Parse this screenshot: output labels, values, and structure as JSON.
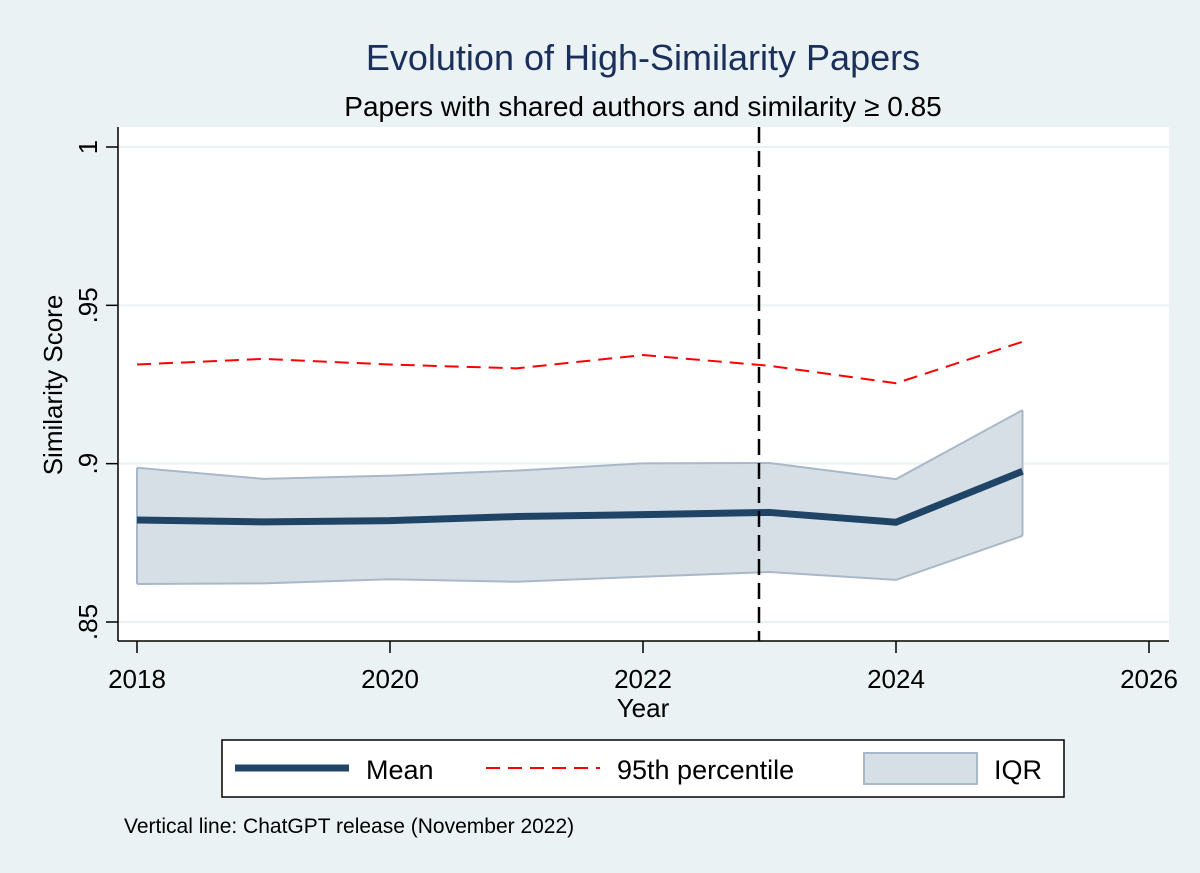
{
  "chart_data": {
    "type": "line",
    "title": "Evolution of High-Similarity Papers",
    "subtitle": "Papers with shared authors and similarity ≥ 0.85",
    "xlabel": "Year",
    "ylabel": "Similarity Score",
    "xlim": [
      2018,
      2026
    ],
    "ylim": [
      0.85,
      1.0
    ],
    "x_ticks": [
      {
        "value": 2018,
        "label": "2018"
      },
      {
        "value": 2020,
        "label": "2020"
      },
      {
        "value": 2022,
        "label": "2022"
      },
      {
        "value": 2024,
        "label": "2024"
      },
      {
        "value": 2026,
        "label": "2026"
      }
    ],
    "y_ticks": [
      {
        "value": 0.85,
        "label": ".85"
      },
      {
        "value": 0.9,
        "label": ".9"
      },
      {
        "value": 0.95,
        "label": ".95"
      },
      {
        "value": 1.0,
        "label": "1"
      }
    ],
    "grid": "horizontal",
    "x": [
      2018,
      2019,
      2020,
      2021,
      2022,
      2023,
      2024,
      2025
    ],
    "series": [
      {
        "name": "Mean",
        "style": "solid-thick",
        "color": "#1f4466",
        "values": [
          0.8822,
          0.8816,
          0.882,
          0.8833,
          0.8839,
          0.8846,
          0.8815,
          0.8976
        ]
      },
      {
        "name": "95th percentile",
        "style": "dashed",
        "color": "#ff0000",
        "values": [
          0.9313,
          0.9331,
          0.9313,
          0.9301,
          0.9343,
          0.9309,
          0.9254,
          0.9385
        ]
      }
    ],
    "band": {
      "name": "IQR",
      "fill": "#d7dfe6",
      "stroke": "#a9b8c8",
      "lower": [
        0.862,
        0.8622,
        0.8635,
        0.8627,
        0.8643,
        0.8658,
        0.8633,
        0.8772
      ],
      "upper": [
        0.8987,
        0.8952,
        0.8962,
        0.8978,
        0.9001,
        0.9002,
        0.8951,
        0.9169
      ]
    },
    "vline": {
      "x": 2022.917,
      "style": "dashed",
      "color": "#000000"
    },
    "legend": {
      "position": "bottom",
      "items": [
        "Mean",
        "95th percentile",
        "IQR"
      ]
    },
    "note": "Vertical line: ChatGPT release (November 2022)"
  }
}
